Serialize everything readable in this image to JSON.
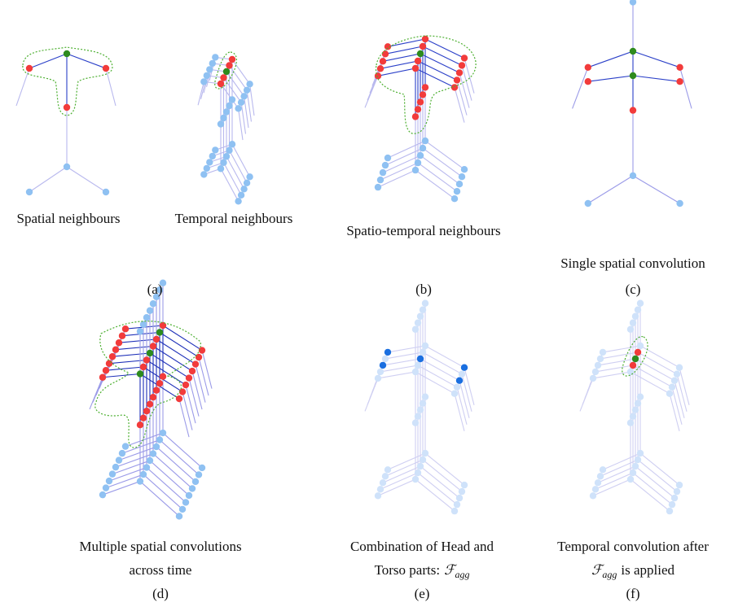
{
  "panel_a": {
    "caption_left": "Spatial neighbours",
    "caption_right": "Temporal neighbours",
    "label": "(a)"
  },
  "panel_b": {
    "caption": "Spatio-temporal neighbours",
    "label": "(b)"
  },
  "panel_c": {
    "caption": "Single spatial convolution",
    "label": "(c)"
  },
  "panel_d": {
    "caption_lines": [
      "Multiple spatial convolutions",
      "across time"
    ],
    "label": "(d)"
  },
  "panel_e": {
    "caption_line1": "Combination of Head and",
    "caption_line2": {
      "text": "Torso parts:",
      "symbol": "ℱ",
      "subscript": "agg"
    },
    "label": "(e)"
  },
  "panel_f": {
    "caption_line1": "Temporal convolution after",
    "caption_line2": {
      "symbol": "ℱ",
      "subscript": "agg",
      "text": "is applied"
    },
    "label": "(f)"
  }
}
